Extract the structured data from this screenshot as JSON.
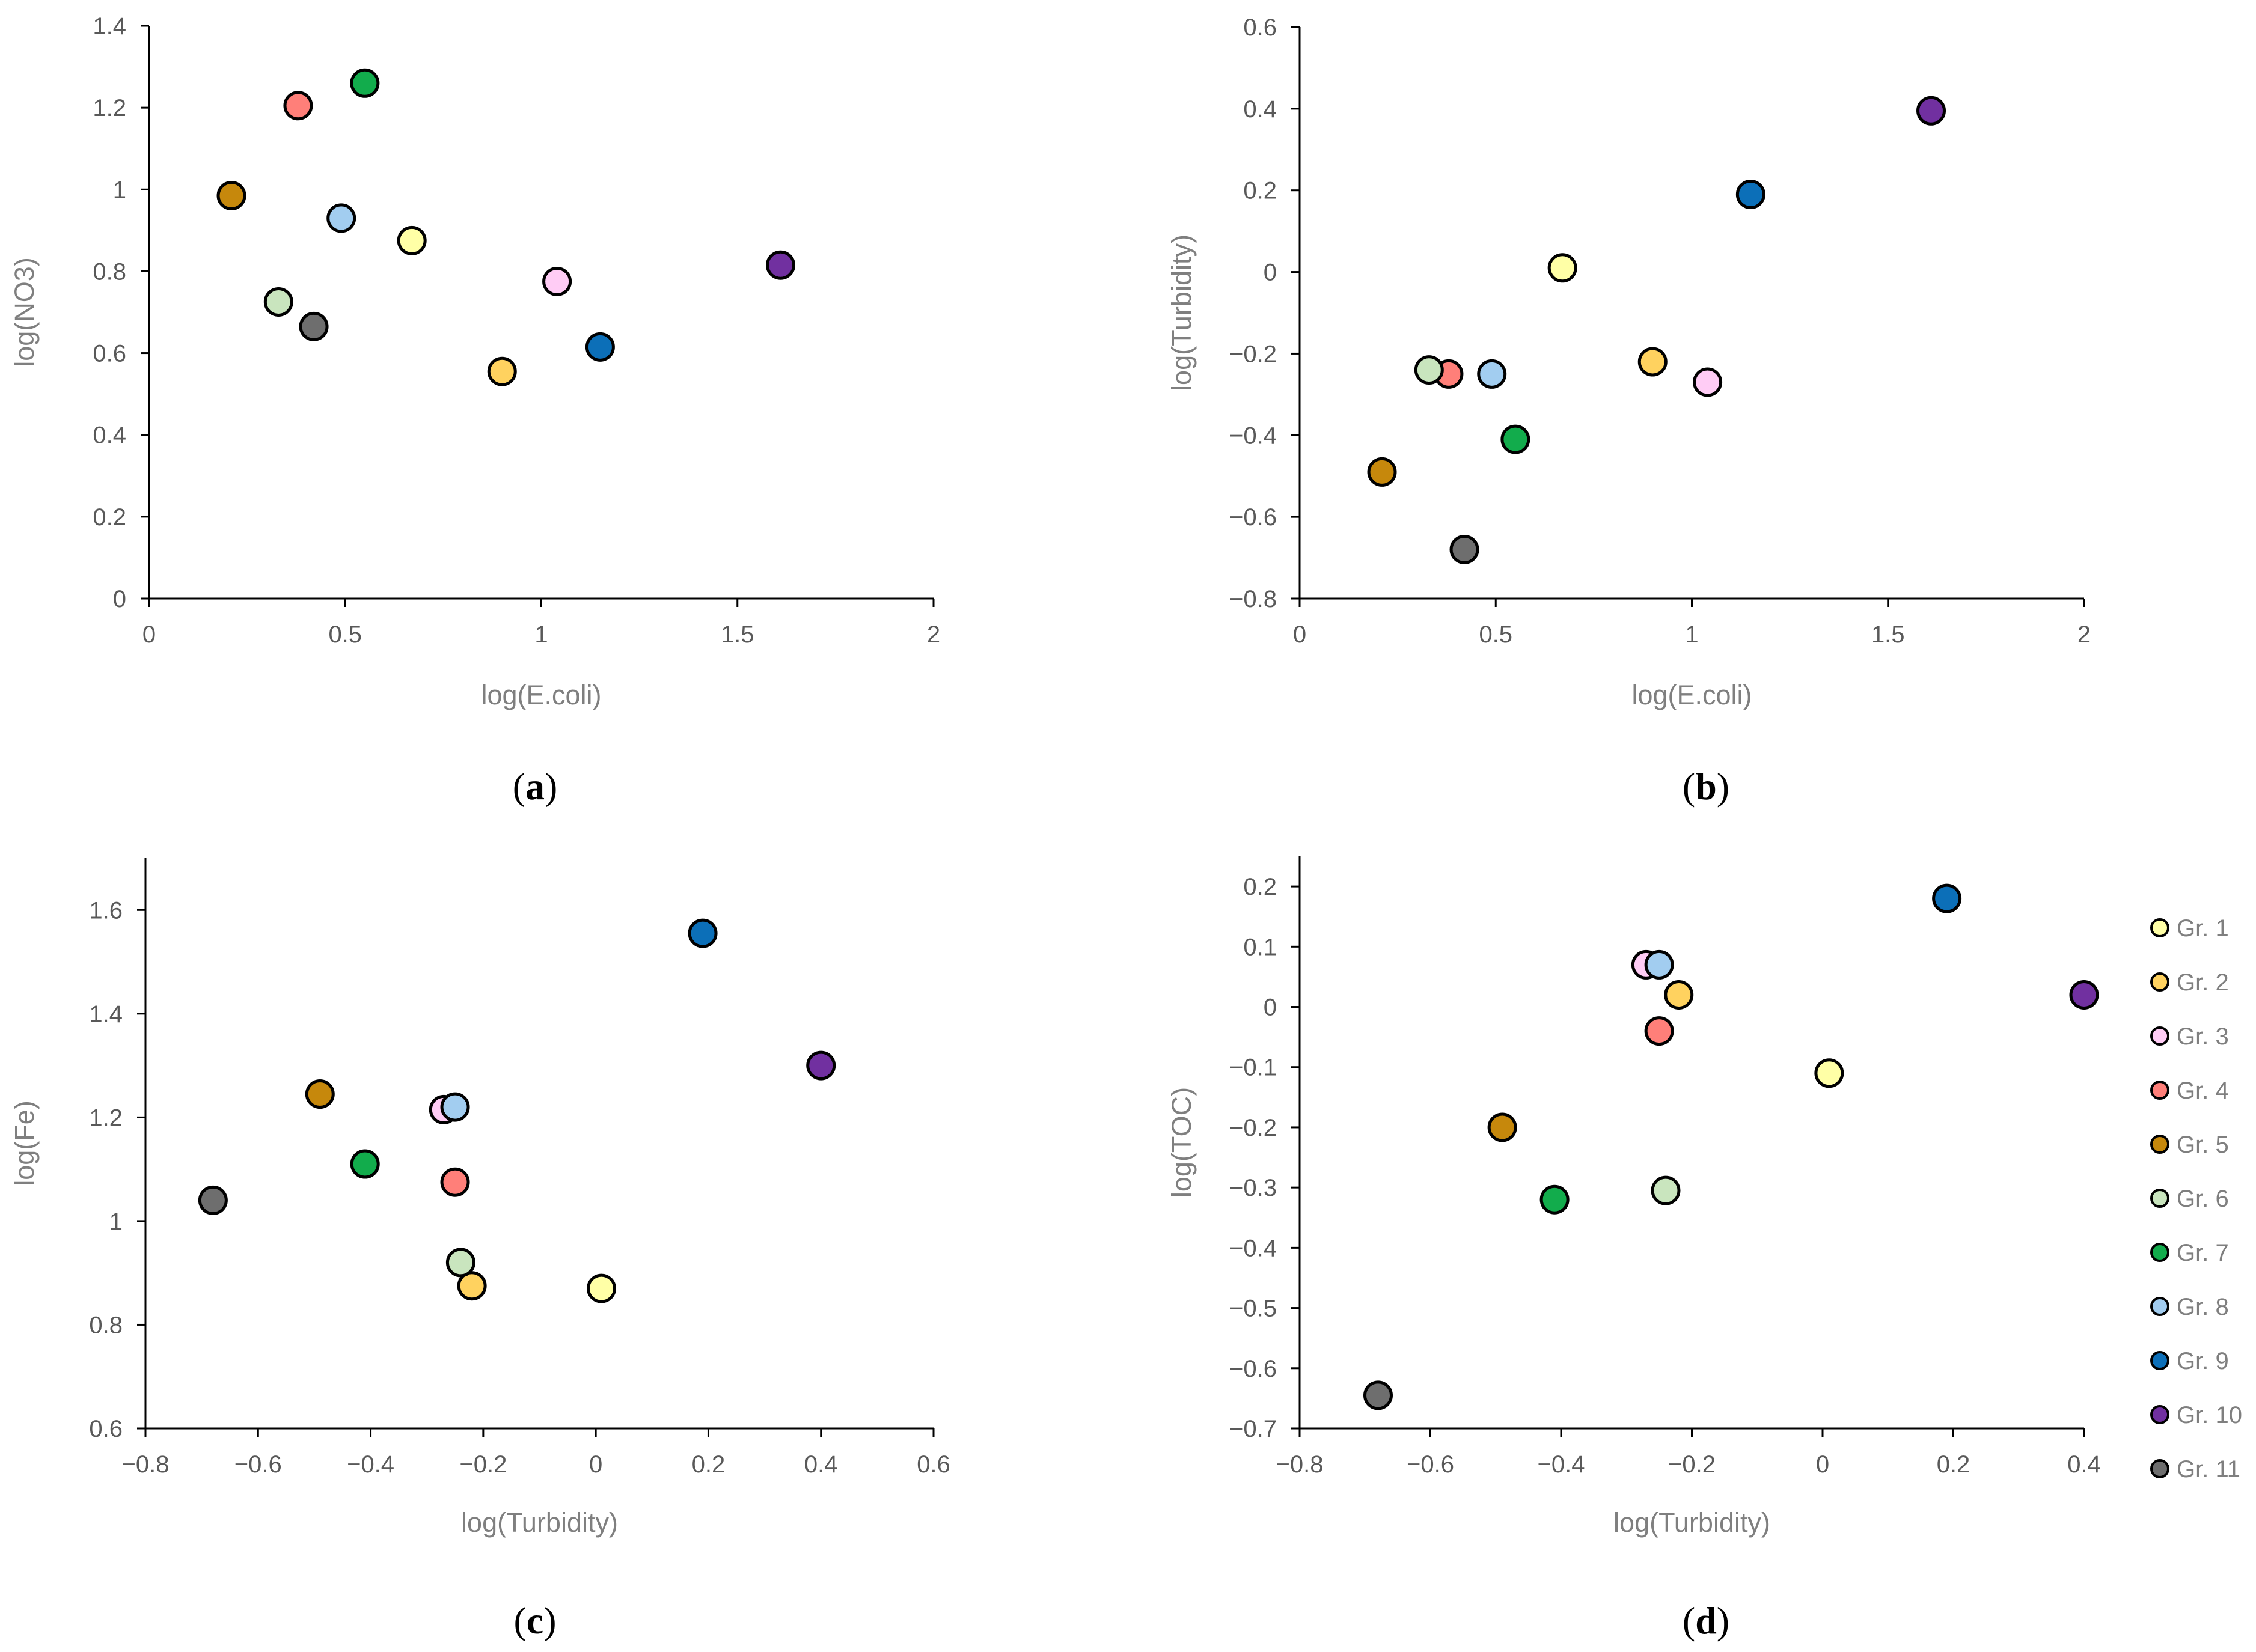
{
  "legend": [
    {
      "label": "Gr. 1",
      "color": "#FFFFA6"
    },
    {
      "label": "Gr. 2",
      "color": "#FFD25F"
    },
    {
      "label": "Gr. 3",
      "color": "#FFCCF5"
    },
    {
      "label": "Gr. 4",
      "color": "#FF7F79"
    },
    {
      "label": "Gr. 5",
      "color": "#C6880C"
    },
    {
      "label": "Gr. 6",
      "color": "#C9E5BE"
    },
    {
      "label": "Gr. 7",
      "color": "#12AC4C"
    },
    {
      "label": "Gr. 8",
      "color": "#A2CDF0"
    },
    {
      "label": "Gr. 9",
      "color": "#0C6FB8"
    },
    {
      "label": "Gr. 10",
      "color": "#7130A0"
    },
    {
      "label": "Gr. 11",
      "color": "#6E6E6E"
    }
  ],
  "chart_data": [
    {
      "panel": "a",
      "type": "scatter",
      "title": "",
      "xlabel": "log(E.coli)",
      "ylabel": "log(NO3)",
      "xlim": [
        0,
        2
      ],
      "ylim": [
        0,
        1.4
      ],
      "xticks": [
        0,
        0.5,
        1,
        1.5,
        2
      ],
      "xtick_labels": [
        "0",
        "0.5",
        "1",
        "1.5",
        "2"
      ],
      "yticks": [
        0,
        0.2,
        0.4,
        0.6,
        0.8,
        1,
        1.2,
        1.4
      ],
      "ytick_labels": [
        "0",
        "0.2",
        "0.4",
        "0.6",
        "0.8",
        "1",
        "1.2",
        "1.4"
      ],
      "points": [
        {
          "group": "Gr. 1",
          "x": 0.67,
          "y": 0.875
        },
        {
          "group": "Gr. 2",
          "x": 0.9,
          "y": 0.555
        },
        {
          "group": "Gr. 3",
          "x": 1.04,
          "y": 0.775
        },
        {
          "group": "Gr. 4",
          "x": 0.38,
          "y": 1.205
        },
        {
          "group": "Gr. 5",
          "x": 0.21,
          "y": 0.985
        },
        {
          "group": "Gr. 6",
          "x": 0.33,
          "y": 0.725
        },
        {
          "group": "Gr. 7",
          "x": 0.55,
          "y": 1.26
        },
        {
          "group": "Gr. 8",
          "x": 0.49,
          "y": 0.93
        },
        {
          "group": "Gr. 9",
          "x": 1.15,
          "y": 0.615
        },
        {
          "group": "Gr. 10",
          "x": 1.61,
          "y": 0.815
        },
        {
          "group": "Gr. 11",
          "x": 0.42,
          "y": 0.665
        }
      ]
    },
    {
      "panel": "b",
      "type": "scatter",
      "title": "",
      "xlabel": "log(E.coli)",
      "ylabel": "log(Turbidity)",
      "xlim": [
        0,
        2
      ],
      "ylim": [
        -0.8,
        0.6
      ],
      "xticks": [
        0,
        0.5,
        1,
        1.5,
        2
      ],
      "xtick_labels": [
        "0",
        "0.5",
        "1",
        "1.5",
        "2"
      ],
      "yticks": [
        -0.8,
        -0.6,
        -0.4,
        -0.2,
        0,
        0.2,
        0.4,
        0.6
      ],
      "ytick_labels": [
        "−0.8",
        "−0.6",
        "−0.4",
        "−0.2",
        "0",
        "0.2",
        "0.4",
        "0.6"
      ],
      "points": [
        {
          "group": "Gr. 1",
          "x": 0.67,
          "y": 0.01
        },
        {
          "group": "Gr. 2",
          "x": 0.9,
          "y": -0.22
        },
        {
          "group": "Gr. 3",
          "x": 1.04,
          "y": -0.27
        },
        {
          "group": "Gr. 4",
          "x": 0.38,
          "y": -0.25
        },
        {
          "group": "Gr. 5",
          "x": 0.21,
          "y": -0.49
        },
        {
          "group": "Gr. 6",
          "x": 0.33,
          "y": -0.24
        },
        {
          "group": "Gr. 7",
          "x": 0.55,
          "y": -0.41
        },
        {
          "group": "Gr. 8",
          "x": 0.49,
          "y": -0.25
        },
        {
          "group": "Gr. 9",
          "x": 1.15,
          "y": 0.19
        },
        {
          "group": "Gr. 10",
          "x": 1.61,
          "y": 0.395
        },
        {
          "group": "Gr. 11",
          "x": 0.42,
          "y": -0.68
        }
      ]
    },
    {
      "panel": "c",
      "type": "scatter",
      "title": "",
      "xlabel": "log(Turbidity)",
      "ylabel": "log(Fe)",
      "xlim": [
        -0.8,
        0.6
      ],
      "ylim": [
        0.6,
        1.7
      ],
      "xticks": [
        -0.8,
        -0.6,
        -0.4,
        -0.2,
        0,
        0.2,
        0.4,
        0.6
      ],
      "xtick_labels": [
        "−0.8",
        "−0.6",
        "−0.4",
        "−0.2",
        "0",
        "0.2",
        "0.4",
        "0.6"
      ],
      "yticks": [
        0.6,
        0.8,
        1,
        1.2,
        1.4,
        1.6
      ],
      "ytick_labels": [
        "0.6",
        "0.8",
        "1",
        "1.2",
        "1.4",
        "1.6"
      ],
      "points": [
        {
          "group": "Gr. 1",
          "x": 0.01,
          "y": 0.87
        },
        {
          "group": "Gr. 2",
          "x": -0.22,
          "y": 0.875
        },
        {
          "group": "Gr. 3",
          "x": -0.27,
          "y": 1.215
        },
        {
          "group": "Gr. 4",
          "x": -0.25,
          "y": 1.075
        },
        {
          "group": "Gr. 5",
          "x": -0.49,
          "y": 1.245
        },
        {
          "group": "Gr. 6",
          "x": -0.24,
          "y": 0.92
        },
        {
          "group": "Gr. 7",
          "x": -0.41,
          "y": 1.11
        },
        {
          "group": "Gr. 8",
          "x": -0.25,
          "y": 1.22
        },
        {
          "group": "Gr. 9",
          "x": 0.19,
          "y": 1.555
        },
        {
          "group": "Gr. 10",
          "x": 0.4,
          "y": 1.3
        },
        {
          "group": "Gr. 11",
          "x": -0.68,
          "y": 1.04
        }
      ]
    },
    {
      "panel": "d",
      "type": "scatter",
      "title": "",
      "xlabel": "log(Turbidity)",
      "ylabel": "log(TOC)",
      "xlim": [
        -0.8,
        0.4
      ],
      "ylim": [
        -0.7,
        0.25
      ],
      "xticks": [
        -0.8,
        -0.6,
        -0.4,
        -0.2,
        0,
        0.2,
        0.4
      ],
      "xtick_labels": [
        "−0.8",
        "−0.6",
        "−0.4",
        "−0.2",
        "0",
        "0.2",
        "0.4"
      ],
      "yticks": [
        -0.7,
        -0.6,
        -0.5,
        -0.4,
        -0.3,
        -0.2,
        -0.1,
        0,
        0.1,
        0.2
      ],
      "ytick_labels": [
        "−0.7",
        "−0.6",
        "−0.5",
        "−0.4",
        "−0.3",
        "−0.2",
        "−0.1",
        "0",
        "0.1",
        "0.2"
      ],
      "points": [
        {
          "group": "Gr. 1",
          "x": 0.01,
          "y": -0.11
        },
        {
          "group": "Gr. 2",
          "x": -0.22,
          "y": 0.02
        },
        {
          "group": "Gr. 3",
          "x": -0.27,
          "y": 0.07
        },
        {
          "group": "Gr. 4",
          "x": -0.25,
          "y": -0.04
        },
        {
          "group": "Gr. 5",
          "x": -0.49,
          "y": -0.2
        },
        {
          "group": "Gr. 6",
          "x": -0.24,
          "y": -0.305
        },
        {
          "group": "Gr. 7",
          "x": -0.41,
          "y": -0.32
        },
        {
          "group": "Gr. 8",
          "x": -0.25,
          "y": 0.07
        },
        {
          "group": "Gr. 9",
          "x": 0.19,
          "y": 0.18
        },
        {
          "group": "Gr. 10",
          "x": 0.4,
          "y": 0.02
        },
        {
          "group": "Gr. 11",
          "x": -0.68,
          "y": -0.645
        }
      ]
    }
  ],
  "panel_labels": [
    {
      "open": "(",
      "letter": "a",
      "close": ")"
    },
    {
      "open": "(",
      "letter": "b",
      "close": ")"
    },
    {
      "open": "(",
      "letter": "c",
      "close": ")"
    },
    {
      "open": "(",
      "letter": "d",
      "close": ")"
    }
  ]
}
